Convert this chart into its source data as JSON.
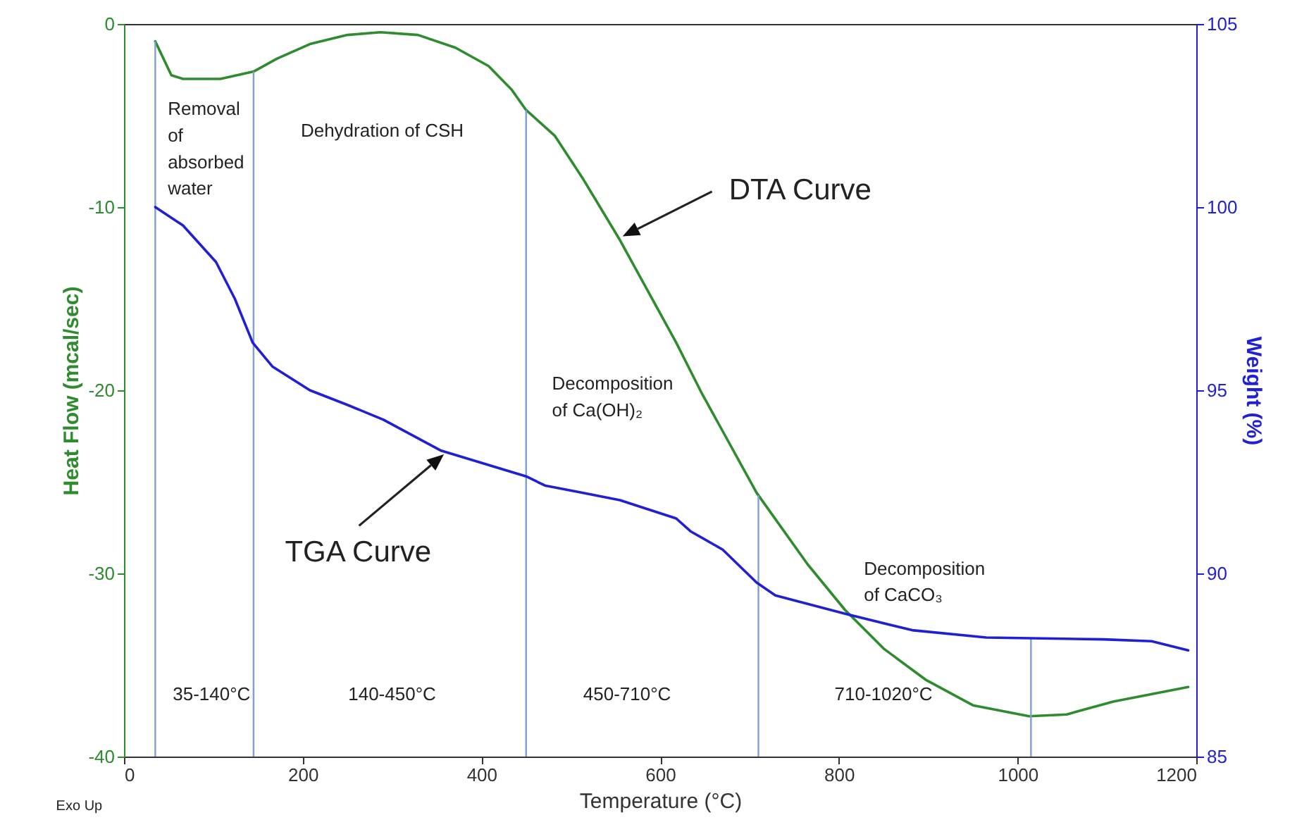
{
  "chart_data": {
    "type": "line",
    "xlabel": "Temperature (°C)",
    "ylabel": "Heat Flow (mcal/sec)",
    "y2label": "Weight (%)",
    "xlim": [
      0,
      1200
    ],
    "xticks": [
      0,
      200,
      400,
      600,
      800,
      1000,
      1200
    ],
    "ylim": [
      -40,
      0
    ],
    "yticks": [
      -40,
      -30,
      -20,
      -10,
      0
    ],
    "y2lim": [
      85,
      105
    ],
    "y2ticks": [
      85,
      90,
      95,
      100,
      105
    ],
    "series": [
      {
        "color": "#2e8b2e",
        "x": [
          35,
          53,
          66,
          108,
          145,
          171,
          208,
          250,
          287,
          329,
          371,
          408,
          434,
          450,
          466,
          482,
          513,
          555,
          618,
          647,
          708,
          765,
          807,
          850,
          897,
          950,
          1013,
          1055,
          1107,
          1191
        ],
        "values": [
          -0.95,
          -2.8,
          -3.0,
          -3.0,
          -2.6,
          -1.9,
          -1.1,
          -0.6,
          -0.45,
          -0.6,
          -1.3,
          -2.3,
          -3.6,
          -4.7,
          -5.4,
          -6.1,
          -8.4,
          -11.8,
          -17.4,
          -20.2,
          -25.6,
          -29.5,
          -32.0,
          -34.1,
          -35.8,
          -37.2,
          -37.8,
          -37.7,
          -37.0,
          -36.2
        ]
      },
      {
        "color": "#1f1fd6",
        "axis": "y2",
        "x": [
          35,
          66,
          103,
          124,
          144,
          166,
          208,
          250,
          290,
          355,
          450,
          471,
          513,
          555,
          618,
          634,
          670,
          708,
          729,
          807,
          882,
          965,
          1096,
          1150,
          1191
        ],
        "values": [
          100.0,
          99.5,
          98.5,
          97.5,
          96.3,
          95.65,
          95.0,
          94.6,
          94.2,
          93.35,
          92.65,
          92.4,
          92.2,
          92.0,
          91.5,
          91.15,
          90.65,
          89.75,
          89.4,
          88.9,
          88.45,
          88.25,
          88.2,
          88.15,
          87.9
        ]
      }
    ],
    "ref_lines": [
      {
        "axis": "x",
        "value": 35,
        "color": "#7f9fd0"
      },
      {
        "axis": "x",
        "value": 145,
        "color": "#7f9fd0"
      },
      {
        "axis": "x",
        "value": 450,
        "color": "#7f9fd0"
      },
      {
        "axis": "x",
        "value": 710,
        "color": "#7f9fd0"
      },
      {
        "axis": "x",
        "value": 1015,
        "color": "#7f9fd0"
      }
    ],
    "annotations": [
      "Removal of absorbed water",
      "Dehydration of CSH",
      "Decomposition of Ca(OH)₂",
      "Decomposition of CaCO₃",
      "DTA Curve",
      "TGA Curve",
      "35-140°C",
      "140-450°C",
      "450-710°C",
      "710-1020°C",
      "Exo Up"
    ]
  }
}
